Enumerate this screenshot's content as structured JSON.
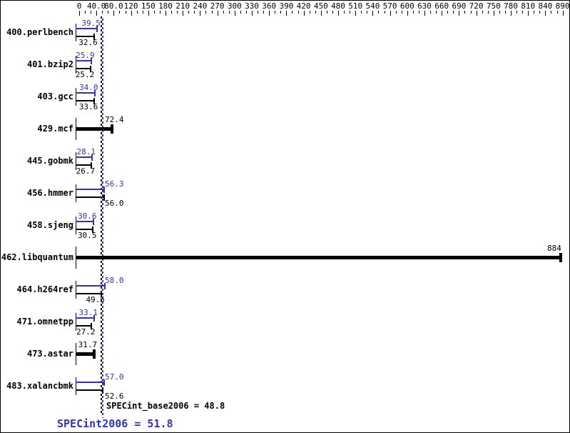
{
  "chart_data": {
    "type": "bar",
    "orientation": "horizontal",
    "x_axis": {
      "position": "top",
      "tick_labels": [
        "0",
        "40.0",
        "80.0",
        "120",
        "150",
        "180",
        "210",
        "240",
        "270",
        "300",
        "330",
        "360",
        "390",
        "420",
        "450",
        "480",
        "510",
        "540",
        "570",
        "600",
        "630",
        "660",
        "690",
        "720",
        "750",
        "780",
        "810",
        "840",
        "890"
      ],
      "range": [
        0,
        890
      ]
    },
    "categories": [
      "400.perlbench",
      "401.bzip2",
      "403.gcc",
      "429.mcf",
      "445.gobmk",
      "456.hmmer",
      "458.sjeng",
      "462.libquantum",
      "464.h264ref",
      "471.omnetpp",
      "473.astar",
      "483.xalancbmk"
    ],
    "series": [
      {
        "name": "SPECint2006",
        "color": "#3232b4",
        "values": [
          "39.5",
          "25.9",
          "34.0",
          "72.4",
          "28.1",
          "56.3",
          "30.6",
          "884",
          "58.0",
          "33.1",
          "31.7",
          "57.0"
        ]
      },
      {
        "name": "SPECint_base2006",
        "color": "#000000",
        "values": [
          "32.6",
          "25.2",
          "33.6",
          "72.4",
          "26.7",
          "56.0",
          "30.5",
          "884",
          "49.5",
          "27.2",
          "31.7",
          "52.6"
        ]
      }
    ],
    "summary": {
      "base_text": "SPECint_base2006 = 48.8",
      "peak_text": "SPECint2006 = 51.8",
      "base_mean": 48.8,
      "peak_mean": 51.8
    },
    "colors": {
      "peak": "#3232b4",
      "base": "#000000",
      "background": "#ffffff"
    }
  }
}
